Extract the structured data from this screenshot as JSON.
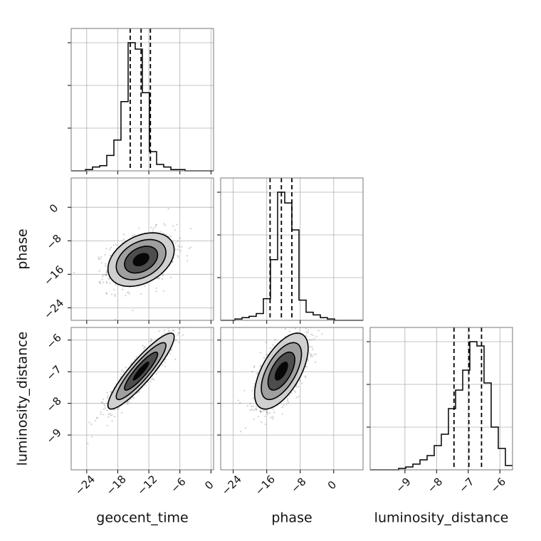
{
  "chart_data": {
    "type": "corner",
    "parameters": [
      "geocent_time",
      "phase",
      "luminosity_distance"
    ],
    "axis_labels": {
      "geocent_time": "geocent_time",
      "phase": "phase",
      "luminosity_distance": "luminosity_distance"
    },
    "ranges": {
      "geocent_time": [
        -27,
        0.5
      ],
      "phase": [
        -27,
        7
      ],
      "luminosity_distance": [
        -10.1,
        -5.6
      ]
    },
    "ticks": {
      "geocent_time": {
        "values": [
          -24,
          -18,
          -12,
          -6,
          0
        ],
        "labels": [
          "−24",
          "−18",
          "−12",
          "−6",
          "0"
        ]
      },
      "phase": {
        "values": [
          -24,
          -16,
          -8,
          0
        ],
        "labels": [
          "−24",
          "−16",
          "−8",
          "0"
        ]
      },
      "luminosity_distance": {
        "values": [
          -9,
          -8,
          -7,
          -6
        ],
        "labels": [
          "−9",
          "−8",
          "−7",
          "−6"
        ]
      }
    },
    "grid": true,
    "histograms": {
      "geocent_time": {
        "bin_edges": [
          -27,
          -25.63,
          -24.25,
          -22.88,
          -21.5,
          -20.13,
          -18.75,
          -17.38,
          -16,
          -14.63,
          -13.25,
          -11.88,
          -10.5,
          -9.13,
          -7.75,
          -6.38,
          -5,
          -3.63,
          -2.25,
          -0.88,
          0.5
        ],
        "counts": [
          0,
          0,
          1,
          3,
          4,
          12,
          24,
          54,
          100,
          95,
          61,
          15,
          5,
          3,
          1,
          1,
          0,
          0,
          0,
          0
        ],
        "quantiles": [
          -15.6,
          -13.5,
          -11.7
        ]
      },
      "phase": {
        "bin_edges": [
          -27,
          -25.3,
          -23.6,
          -21.9,
          -20.2,
          -18.5,
          -16.8,
          -15.1,
          -13.4,
          -11.7,
          -10,
          -8.3,
          -6.6,
          -4.9,
          -3.2,
          -1.5,
          0.2,
          1.9,
          3.6,
          5.3,
          7
        ],
        "counts": [
          0,
          0,
          1,
          2,
          3,
          5,
          16,
          45,
          95,
          87,
          67,
          15,
          6,
          4,
          2,
          1,
          0,
          0,
          0,
          0
        ],
        "quantiles": [
          -15.2,
          -12.5,
          -10
        ]
      },
      "luminosity_distance": {
        "bin_edges": [
          -10.1,
          -9.875,
          -9.65,
          -9.425,
          -9.2,
          -8.975,
          -8.75,
          -8.525,
          -8.3,
          -8.075,
          -7.85,
          -7.625,
          -7.4,
          -7.175,
          -6.95,
          -6.725,
          -6.5,
          -6.275,
          -6.05,
          -5.825,
          -5.6
        ],
        "counts": [
          0,
          0,
          0,
          0,
          1,
          2,
          4,
          7,
          10,
          17,
          25,
          43,
          56,
          70,
          90,
          87,
          61,
          30,
          15,
          3
        ],
        "quantiles": [
          -7.45,
          -6.98,
          -6.58
        ]
      }
    },
    "posterior_2d": [
      {
        "x": "geocent_time",
        "y": "phase",
        "mean": [
          -13.5,
          -12.5
        ],
        "std": [
          3.2,
          3.2
        ],
        "correlation": 0.35
      },
      {
        "x": "geocent_time",
        "y": "luminosity_distance",
        "mean": [
          -13.5,
          -6.98
        ],
        "std": [
          3.2,
          0.6
        ],
        "correlation": 0.9
      },
      {
        "x": "phase",
        "y": "luminosity_distance",
        "mean": [
          -12.5,
          -6.98
        ],
        "std": [
          3.2,
          0.6
        ],
        "correlation": 0.6
      }
    ],
    "contour_levels_sigma": [
      0.5,
      1.0,
      1.5,
      2.0
    ],
    "colors": {
      "line": "#000000",
      "grid": "#b0b0b0",
      "points": "#333333",
      "fill_levels": [
        "#000000",
        "#444444",
        "#999999",
        "#d0d0d0"
      ]
    }
  }
}
